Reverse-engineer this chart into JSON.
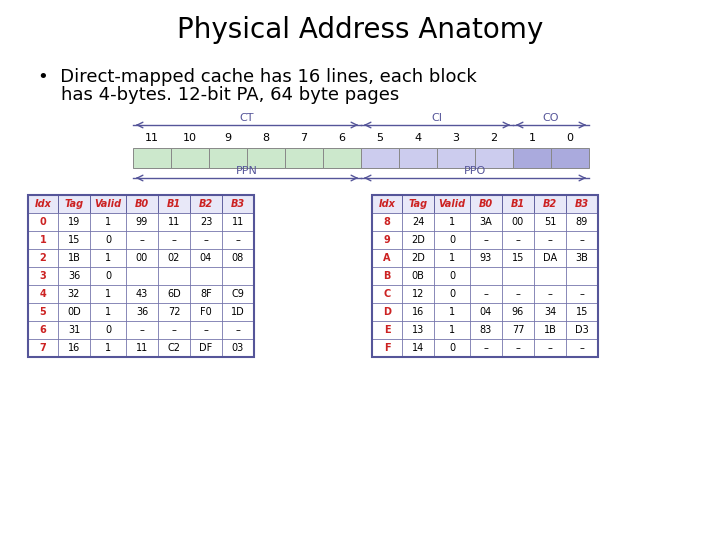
{
  "title": "Physical Address Anatomy",
  "bullet_line1": "•  Direct-mapped cache has 16 lines, each block",
  "bullet_line2": "    has 4-bytes. 12-bit PA, 64 byte pages",
  "bit_labels": [
    "11",
    "10",
    "9",
    "8",
    "7",
    "6",
    "5",
    "4",
    "3",
    "2",
    "1",
    "0"
  ],
  "seg_colors": [
    "#cce8cc",
    "#cce8cc",
    "#cce8cc",
    "#cce8cc",
    "#cce8cc",
    "#cce8cc",
    "#ccccee",
    "#ccccee",
    "#ccccee",
    "#ccccee",
    "#aaaadd",
    "#aaaadd"
  ],
  "arrow_color": "#555599",
  "label_color": "#555599",
  "bg_color": "#ffffff",
  "table_border": "#555599",
  "header_bg": "#e8e8f8",
  "idx_color": "#cc2222",
  "header_color": "#cc2222",
  "table_left": {
    "headers": [
      "Idx",
      "Tag",
      "Valid",
      "B0",
      "B1",
      "B2",
      "B3"
    ],
    "rows": [
      [
        "0",
        "19",
        "1",
        "99",
        "11",
        "23",
        "11"
      ],
      [
        "1",
        "15",
        "0",
        "–",
        "–",
        "–",
        "–"
      ],
      [
        "2",
        "1B",
        "1",
        "00",
        "02",
        "04",
        "08"
      ],
      [
        "3",
        "36",
        "0",
        "",
        "",
        "",
        ""
      ],
      [
        "4",
        "32",
        "1",
        "43",
        "6D",
        "8F",
        "C9"
      ],
      [
        "5",
        "0D",
        "1",
        "36",
        "72",
        "F0",
        "1D"
      ],
      [
        "6",
        "31",
        "0",
        "–",
        "–",
        "–",
        "–"
      ],
      [
        "7",
        "16",
        "1",
        "11",
        "C2",
        "DF",
        "03"
      ]
    ]
  },
  "table_right": {
    "headers": [
      "Idx",
      "Tag",
      "Valid",
      "B0",
      "B1",
      "B2",
      "B3"
    ],
    "rows": [
      [
        "8",
        "24",
        "1",
        "3A",
        "00",
        "51",
        "89"
      ],
      [
        "9",
        "2D",
        "0",
        "–",
        "–",
        "–",
        "–"
      ],
      [
        "A",
        "2D",
        "1",
        "93",
        "15",
        "DA",
        "3B"
      ],
      [
        "B",
        "0B",
        "0",
        "",
        "",
        "",
        ""
      ],
      [
        "C",
        "12",
        "0",
        "–",
        "–",
        "–",
        "–"
      ],
      [
        "D",
        "16",
        "1",
        "04",
        "96",
        "34",
        "15"
      ],
      [
        "E",
        "13",
        "1",
        "83",
        "77",
        "1B",
        "D3"
      ],
      [
        "F",
        "14",
        "0",
        "–",
        "–",
        "–",
        "–"
      ]
    ]
  }
}
